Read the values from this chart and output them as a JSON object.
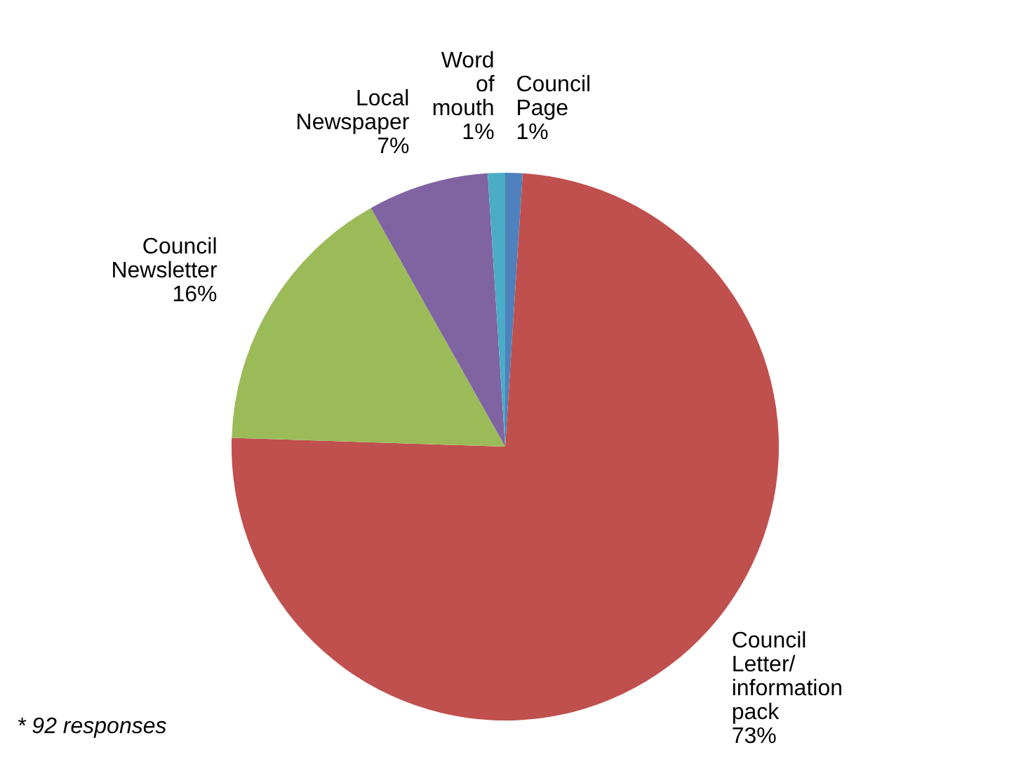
{
  "chart_data": {
    "type": "pie",
    "categories": [
      "Council Page",
      "Council Letter/ information pack",
      "Council Newsletter",
      "Local Newspaper",
      "Word of mouth"
    ],
    "values": [
      1,
      73,
      16,
      7,
      1
    ],
    "value_labels": [
      "1%",
      "73%",
      "16%",
      "7%",
      "1%"
    ],
    "colors": [
      "#4f81bd",
      "#c0504d",
      "#9bbb59",
      "#8064a2",
      "#4bacc6"
    ],
    "annotations": [
      "* 92 responses"
    ]
  }
}
